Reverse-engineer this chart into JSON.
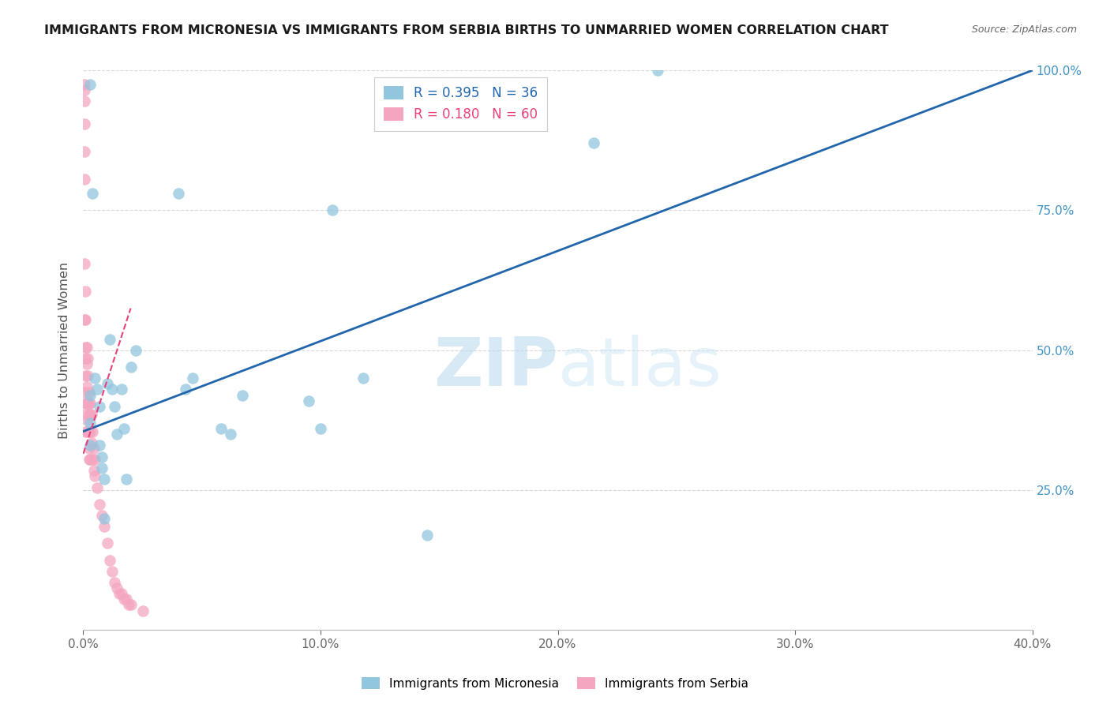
{
  "title": "IMMIGRANTS FROM MICRONESIA VS IMMIGRANTS FROM SERBIA BIRTHS TO UNMARRIED WOMEN CORRELATION CHART",
  "source": "Source: ZipAtlas.com",
  "ylabel": "Births to Unmarried Women",
  "legend_label_blue": "Immigrants from Micronesia",
  "legend_label_pink": "Immigrants from Serbia",
  "R_blue": 0.395,
  "N_blue": 36,
  "R_pink": 0.18,
  "N_pink": 60,
  "color_blue": "#92c5de",
  "color_pink": "#f4a6c0",
  "color_blue_line": "#2166ac",
  "color_pink_line": "#e8407a",
  "color_right_axis": "#4393c3",
  "watermark_zip": "ZIP",
  "watermark_atlas": "atlas",
  "xlim": [
    0.0,
    0.4
  ],
  "ylim": [
    0.0,
    1.0
  ],
  "x_ticks": [
    0.0,
    0.1,
    0.2,
    0.3,
    0.4
  ],
  "x_tick_labels": [
    "0.0%",
    "10.0%",
    "20.0%",
    "30.0%",
    "40.0%"
  ],
  "y_ticks": [
    0.25,
    0.5,
    0.75,
    1.0
  ],
  "y_tick_labels_right": [
    "25.0%",
    "50.0%",
    "75.0%",
    "100.0%"
  ],
  "blue_scatter_x": [
    0.003,
    0.003,
    0.003,
    0.003,
    0.004,
    0.005,
    0.006,
    0.007,
    0.007,
    0.008,
    0.008,
    0.009,
    0.009,
    0.01,
    0.011,
    0.012,
    0.013,
    0.014,
    0.016,
    0.017,
    0.018,
    0.02,
    0.022,
    0.04,
    0.043,
    0.046,
    0.058,
    0.062,
    0.067,
    0.095,
    0.1,
    0.105,
    0.118,
    0.145,
    0.215,
    0.242
  ],
  "blue_scatter_y": [
    0.975,
    0.42,
    0.37,
    0.33,
    0.78,
    0.45,
    0.43,
    0.4,
    0.33,
    0.31,
    0.29,
    0.27,
    0.2,
    0.44,
    0.52,
    0.43,
    0.4,
    0.35,
    0.43,
    0.36,
    0.27,
    0.47,
    0.5,
    0.78,
    0.43,
    0.45,
    0.36,
    0.35,
    0.42,
    0.41,
    0.36,
    0.75,
    0.45,
    0.17,
    0.87,
    1.0
  ],
  "pink_scatter_x": [
    0.0005,
    0.0005,
    0.0005,
    0.0005,
    0.0005,
    0.0005,
    0.0005,
    0.0005,
    0.0005,
    0.001,
    0.001,
    0.001,
    0.001,
    0.001,
    0.001,
    0.001,
    0.001,
    0.0015,
    0.0015,
    0.0015,
    0.0015,
    0.0015,
    0.002,
    0.002,
    0.002,
    0.002,
    0.0025,
    0.0025,
    0.0025,
    0.0025,
    0.0025,
    0.0025,
    0.003,
    0.003,
    0.003,
    0.003,
    0.0035,
    0.0035,
    0.004,
    0.004,
    0.0045,
    0.0045,
    0.005,
    0.005,
    0.006,
    0.007,
    0.008,
    0.009,
    0.01,
    0.011,
    0.012,
    0.013,
    0.014,
    0.015,
    0.016,
    0.017,
    0.018,
    0.019,
    0.02,
    0.025
  ],
  "pink_scatter_y": [
    0.975,
    0.965,
    0.945,
    0.905,
    0.855,
    0.805,
    0.655,
    0.555,
    0.425,
    0.605,
    0.555,
    0.505,
    0.485,
    0.455,
    0.405,
    0.385,
    0.355,
    0.505,
    0.475,
    0.435,
    0.405,
    0.375,
    0.485,
    0.455,
    0.405,
    0.355,
    0.425,
    0.405,
    0.385,
    0.355,
    0.325,
    0.305,
    0.405,
    0.385,
    0.355,
    0.305,
    0.385,
    0.335,
    0.355,
    0.305,
    0.325,
    0.285,
    0.305,
    0.275,
    0.255,
    0.225,
    0.205,
    0.185,
    0.155,
    0.125,
    0.105,
    0.085,
    0.075,
    0.065,
    0.065,
    0.055,
    0.055,
    0.045,
    0.045,
    0.035
  ],
  "blue_line_x": [
    0.0,
    0.4
  ],
  "blue_line_y": [
    0.355,
    1.0
  ],
  "pink_line_x": [
    0.0,
    0.02
  ],
  "pink_line_y": [
    0.315,
    0.575
  ]
}
